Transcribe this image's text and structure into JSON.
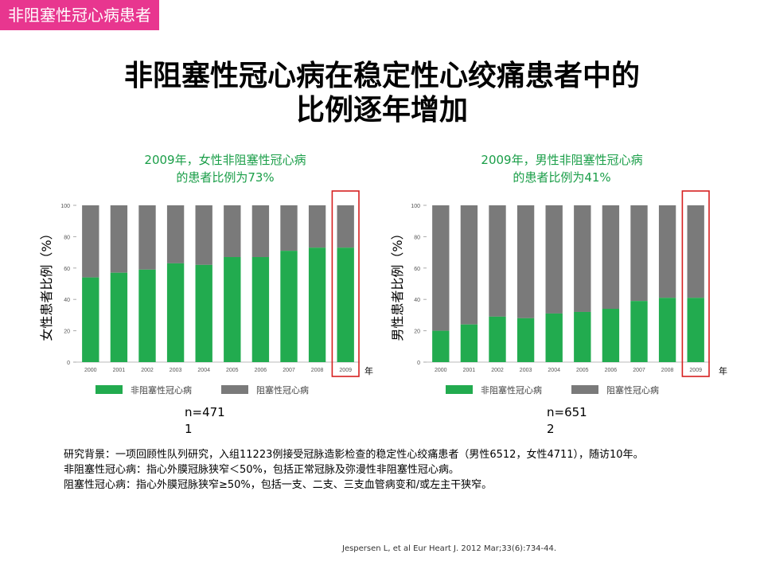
{
  "tag": "非阻塞性冠心病患者",
  "title_line1": "非阻塞性冠心病在稳定性心绞痛患者中的",
  "title_line2": "比例逐年增加",
  "year_unit": "年",
  "colors": {
    "green": "#22ab4f",
    "grey": "#7a7a7a",
    "highlight": "#d62020",
    "title_green": "#1a9e48",
    "tag_bg": "#e8368f"
  },
  "left": {
    "heading1": "2009年，女性非阻塞性冠心病",
    "heading2": "的患者比例为73%",
    "ylabel": "女性患者比例（%）",
    "n": "n=4711"
  },
  "right": {
    "heading1": "2009年，男性非阻塞性冠心病",
    "heading2": "的患者比例为41%",
    "ylabel": "男性患者比例（%）",
    "n": "n=6512"
  },
  "background": {
    "line1": "研究背景：一项回顾性队列研究，入组11223例接受冠脉造影检查的稳定性心绞痛患者（男性6512，女性4711），随访10年。",
    "line2": "非阻塞性冠心病：指心外膜冠脉狭窄＜50%，包括正常冠脉及弥漫性非阻塞性冠心病。",
    "line3": "阻塞性冠心病：指心外膜冠脉狭窄≥50%，包括一支、二支、三支血管病变和/或左主干狭窄。"
  },
  "citation": "Jespersen L, et al Eur Heart J. 2012 Mar;33(6):734-44.",
  "chart_data": [
    {
      "type": "bar",
      "stacked": true,
      "categories": [
        "2000",
        "2001",
        "2002",
        "2003",
        "2004",
        "2005",
        "2006",
        "2007",
        "2008",
        "2009"
      ],
      "series": [
        {
          "name": "非阻塞性冠心病",
          "values": [
            54,
            57,
            59,
            63,
            62,
            67,
            67,
            71,
            73,
            73
          ]
        },
        {
          "name": "阻塞性冠心病",
          "values": [
            46,
            43,
            41,
            37,
            38,
            33,
            33,
            29,
            27,
            27
          ]
        }
      ],
      "yticks": [
        0,
        20,
        40,
        60,
        80,
        100
      ],
      "ylim": [
        0,
        100
      ],
      "highlight": "2009",
      "legend": "bottom"
    },
    {
      "type": "bar",
      "stacked": true,
      "categories": [
        "2000",
        "2001",
        "2002",
        "2003",
        "2004",
        "2005",
        "2006",
        "2007",
        "2008",
        "2009"
      ],
      "series": [
        {
          "name": "非阻塞性冠心病",
          "values": [
            20,
            24,
            29,
            28,
            31,
            32,
            34,
            39,
            41,
            41
          ]
        },
        {
          "name": "阻塞性冠心病",
          "values": [
            80,
            76,
            71,
            72,
            69,
            68,
            66,
            61,
            59,
            59
          ]
        }
      ],
      "yticks": [
        0,
        20,
        40,
        60,
        80,
        100
      ],
      "ylim": [
        0,
        100
      ],
      "highlight": "2009",
      "legend": "bottom"
    }
  ]
}
